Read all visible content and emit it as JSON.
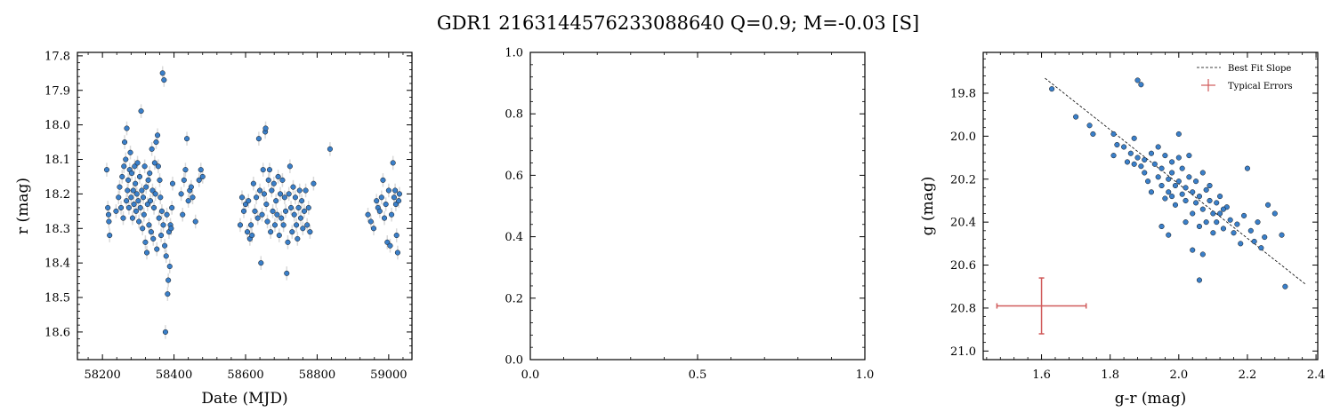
{
  "figure_title": "GDR1 2163144576233088640  Q=0.9; M=-0.03 [S]",
  "colors": {
    "point": "#3a7fc9",
    "point_edge": "#111111",
    "errbar": "#d9d9d9",
    "typical": "#d05a5a",
    "fit": "#000000"
  },
  "chart_data": [
    {
      "type": "scatter",
      "panel": "light-curve",
      "xlabel": "Date (MJD)",
      "ylabel": "r (mag)",
      "xlim": [
        58130,
        59065
      ],
      "ylim": [
        18.68,
        17.79
      ],
      "y_inverted": true,
      "xticks": [
        58200,
        58400,
        58600,
        58800,
        59000
      ],
      "xtick_labels": [
        "58200",
        "58400",
        "58600",
        "58800",
        "59000"
      ],
      "yticks": [
        17.8,
        17.9,
        18.0,
        18.1,
        18.2,
        18.3,
        18.4,
        18.5,
        18.6
      ],
      "ytick_labels": [
        "17.8",
        "17.9",
        "18.0",
        "18.1",
        "18.2",
        "18.3",
        "18.4",
        "18.5",
        "18.6"
      ],
      "y_error": 0.02,
      "points": [
        [
          58212,
          18.13
        ],
        [
          58215,
          18.24
        ],
        [
          58217,
          18.26
        ],
        [
          58218,
          18.28
        ],
        [
          58220,
          18.32
        ],
        [
          58238,
          18.25
        ],
        [
          58245,
          18.21
        ],
        [
          58248,
          18.18
        ],
        [
          58252,
          18.24
        ],
        [
          58255,
          18.15
        ],
        [
          58258,
          18.27
        ],
        [
          58260,
          18.12
        ],
        [
          58262,
          18.05
        ],
        [
          58265,
          18.1
        ],
        [
          58267,
          18.22
        ],
        [
          58268,
          18.01
        ],
        [
          58270,
          18.19
        ],
        [
          58272,
          18.16
        ],
        [
          58274,
          18.24
        ],
        [
          58276,
          18.13
        ],
        [
          58278,
          18.08
        ],
        [
          58280,
          18.21
        ],
        [
          58282,
          18.14
        ],
        [
          58284,
          18.27
        ],
        [
          58286,
          18.19
        ],
        [
          58288,
          18.23
        ],
        [
          58290,
          18.12
        ],
        [
          58292,
          18.17
        ],
        [
          58294,
          18.25
        ],
        [
          58296,
          18.2
        ],
        [
          58298,
          18.11
        ],
        [
          58300,
          18.22
        ],
        [
          58302,
          18.28
        ],
        [
          58304,
          18.15
        ],
        [
          58306,
          18.24
        ],
        [
          58308,
          17.96
        ],
        [
          58310,
          18.19
        ],
        [
          58312,
          18.3
        ],
        [
          58314,
          18.21
        ],
        [
          58316,
          18.26
        ],
        [
          58318,
          18.12
        ],
        [
          58320,
          18.34
        ],
        [
          58322,
          18.18
        ],
        [
          58324,
          18.37
        ],
        [
          58326,
          18.23
        ],
        [
          58328,
          18.16
        ],
        [
          58330,
          18.29
        ],
        [
          58332,
          18.14
        ],
        [
          58334,
          18.22
        ],
        [
          58336,
          18.31
        ],
        [
          58338,
          18.07
        ],
        [
          58340,
          18.19
        ],
        [
          58342,
          18.33
        ],
        [
          58344,
          18.24
        ],
        [
          58346,
          18.11
        ],
        [
          58348,
          18.2
        ],
        [
          58350,
          18.05
        ],
        [
          58352,
          18.36
        ],
        [
          58354,
          18.03
        ],
        [
          58356,
          18.12
        ],
        [
          58358,
          18.27
        ],
        [
          58360,
          18.16
        ],
        [
          58362,
          18.21
        ],
        [
          58364,
          18.32
        ],
        [
          58366,
          18.25
        ],
        [
          58368,
          17.85
        ],
        [
          58370,
          18.29
        ],
        [
          58372,
          17.87
        ],
        [
          58374,
          18.35
        ],
        [
          58376,
          18.6
        ],
        [
          58378,
          18.38
        ],
        [
          58380,
          18.26
        ],
        [
          58382,
          18.49
        ],
        [
          58384,
          18.45
        ],
        [
          58386,
          18.31
        ],
        [
          58388,
          18.41
        ],
        [
          58390,
          18.29
        ],
        [
          58392,
          18.3
        ],
        [
          58394,
          18.24
        ],
        [
          58396,
          18.17
        ],
        [
          58420,
          18.2
        ],
        [
          58424,
          18.26
        ],
        [
          58428,
          18.16
        ],
        [
          58432,
          18.13
        ],
        [
          58436,
          18.04
        ],
        [
          58440,
          18.22
        ],
        [
          58444,
          18.19
        ],
        [
          58448,
          18.18
        ],
        [
          58452,
          18.21
        ],
        [
          58460,
          18.28
        ],
        [
          58470,
          18.16
        ],
        [
          58475,
          18.13
        ],
        [
          58480,
          18.15
        ],
        [
          58585,
          18.29
        ],
        [
          58590,
          18.21
        ],
        [
          58595,
          18.25
        ],
        [
          58600,
          18.23
        ],
        [
          58605,
          18.31
        ],
        [
          58608,
          18.22
        ],
        [
          58612,
          18.33
        ],
        [
          58615,
          18.29
        ],
        [
          58618,
          18.32
        ],
        [
          58622,
          18.17
        ],
        [
          58626,
          18.25
        ],
        [
          58630,
          18.21
        ],
        [
          58634,
          18.27
        ],
        [
          58637,
          18.04
        ],
        [
          58640,
          18.19
        ],
        [
          58643,
          18.4
        ],
        [
          58646,
          18.26
        ],
        [
          58649,
          18.13
        ],
        [
          58652,
          18.2
        ],
        [
          58655,
          18.02
        ],
        [
          58656,
          18.01
        ],
        [
          58658,
          18.23
        ],
        [
          58661,
          18.28
        ],
        [
          58664,
          18.16
        ],
        [
          58667,
          18.13
        ],
        [
          58670,
          18.31
        ],
        [
          58673,
          18.19
        ],
        [
          58676,
          18.25
        ],
        [
          58679,
          18.17
        ],
        [
          58682,
          18.29
        ],
        [
          58685,
          18.22
        ],
        [
          58688,
          18.26
        ],
        [
          58691,
          18.15
        ],
        [
          58694,
          18.32
        ],
        [
          58697,
          18.2
        ],
        [
          58700,
          18.27
        ],
        [
          58703,
          18.16
        ],
        [
          58706,
          18.29
        ],
        [
          58709,
          18.21
        ],
        [
          58712,
          18.25
        ],
        [
          58715,
          18.43
        ],
        [
          58718,
          18.34
        ],
        [
          58721,
          18.2
        ],
        [
          58724,
          18.12
        ],
        [
          58727,
          18.24
        ],
        [
          58730,
          18.31
        ],
        [
          58733,
          18.18
        ],
        [
          58736,
          18.26
        ],
        [
          58739,
          18.21
        ],
        [
          58742,
          18.29
        ],
        [
          58745,
          18.33
        ],
        [
          58748,
          18.24
        ],
        [
          58751,
          18.19
        ],
        [
          58754,
          18.27
        ],
        [
          58757,
          18.22
        ],
        [
          58760,
          18.3
        ],
        [
          58764,
          18.25
        ],
        [
          58768,
          18.19
        ],
        [
          58772,
          18.29
        ],
        [
          58776,
          18.24
        ],
        [
          58780,
          18.31
        ],
        [
          58790,
          18.17
        ],
        [
          58836,
          18.07
        ],
        [
          58942,
          18.26
        ],
        [
          58950,
          18.28
        ],
        [
          58958,
          18.3
        ],
        [
          58966,
          18.22
        ],
        [
          58970,
          18.24
        ],
        [
          58975,
          18.25
        ],
        [
          58980,
          18.21
        ],
        [
          58984,
          18.16
        ],
        [
          58988,
          18.27
        ],
        [
          58992,
          18.23
        ],
        [
          58996,
          18.34
        ],
        [
          59000,
          18.19
        ],
        [
          59004,
          18.35
        ],
        [
          59008,
          18.26
        ],
        [
          59012,
          18.11
        ],
        [
          59015,
          18.21
        ],
        [
          59018,
          18.19
        ],
        [
          59020,
          18.23
        ],
        [
          59022,
          18.32
        ],
        [
          59025,
          18.37
        ],
        [
          59028,
          18.22
        ],
        [
          59030,
          18.2
        ]
      ]
    },
    {
      "type": "scatter",
      "panel": "empty",
      "xlim": [
        0.0,
        1.0
      ],
      "ylim": [
        0.0,
        1.0
      ],
      "xticks": [
        0.0,
        0.5,
        1.0
      ],
      "xtick_labels": [
        "0.0",
        "0.5",
        "1.0"
      ],
      "yticks": [
        0.0,
        0.2,
        0.4,
        0.6,
        0.8,
        1.0
      ],
      "ytick_labels": [
        "0.0",
        "0.2",
        "0.4",
        "0.6",
        "0.8",
        "1.0"
      ],
      "points": []
    },
    {
      "type": "scatter",
      "panel": "color-magnitude",
      "xlabel": "g-r (mag)",
      "ylabel": "g (mag)",
      "xlim": [
        1.43,
        2.405
      ],
      "ylim": [
        21.04,
        19.61
      ],
      "y_inverted": true,
      "xticks": [
        1.6,
        1.8,
        2.0,
        2.2,
        2.4
      ],
      "xtick_labels": [
        "1.6",
        "1.8",
        "2.0",
        "2.2",
        "2.4"
      ],
      "yticks": [
        19.8,
        20.0,
        20.2,
        20.4,
        20.6,
        20.8,
        21.0
      ],
      "ytick_labels": [
        "19.8",
        "20.0",
        "20.2",
        "20.4",
        "20.6",
        "20.8",
        "21.0"
      ],
      "legend": {
        "position": "top-right",
        "entries": [
          "Best Fit Slope",
          "Typical Errors"
        ]
      },
      "best_fit": {
        "x": [
          1.61,
          2.37
        ],
        "y": [
          19.73,
          20.69
        ]
      },
      "typical_error": {
        "x": 1.6,
        "y": 20.79,
        "xerr": 0.13,
        "yerr": 0.13
      },
      "points": [
        [
          1.63,
          19.78
        ],
        [
          1.7,
          19.91
        ],
        [
          1.74,
          19.95
        ],
        [
          1.75,
          19.99
        ],
        [
          1.81,
          19.99
        ],
        [
          1.82,
          20.04
        ],
        [
          1.81,
          20.09
        ],
        [
          1.84,
          20.05
        ],
        [
          1.85,
          20.12
        ],
        [
          1.86,
          20.08
        ],
        [
          1.87,
          20.01
        ],
        [
          1.87,
          20.13
        ],
        [
          1.88,
          19.74
        ],
        [
          1.89,
          19.76
        ],
        [
          1.88,
          20.1
        ],
        [
          1.89,
          20.14
        ],
        [
          1.9,
          20.11
        ],
        [
          1.9,
          20.17
        ],
        [
          1.91,
          20.21
        ],
        [
          1.92,
          20.08
        ],
        [
          1.92,
          20.26
        ],
        [
          1.93,
          20.13
        ],
        [
          1.94,
          20.19
        ],
        [
          1.94,
          20.05
        ],
        [
          1.95,
          20.23
        ],
        [
          1.95,
          20.15
        ],
        [
          1.96,
          20.09
        ],
        [
          1.96,
          20.29
        ],
        [
          1.97,
          20.2
        ],
        [
          1.97,
          20.26
        ],
        [
          1.98,
          20.12
        ],
        [
          1.98,
          20.17
        ],
        [
          1.99,
          20.23
        ],
        [
          1.99,
          20.32
        ],
        [
          2.0,
          20.1
        ],
        [
          2.0,
          20.21
        ],
        [
          2.01,
          20.27
        ],
        [
          2.01,
          20.15
        ],
        [
          2.02,
          20.24
        ],
        [
          2.02,
          20.3
        ],
        [
          2.03,
          20.09
        ],
        [
          2.03,
          20.19
        ],
        [
          2.04,
          20.26
        ],
        [
          2.04,
          20.36
        ],
        [
          2.05,
          20.21
        ],
        [
          2.05,
          20.31
        ],
        [
          2.06,
          20.28
        ],
        [
          2.06,
          20.42
        ],
        [
          2.07,
          20.17
        ],
        [
          2.07,
          20.34
        ],
        [
          2.08,
          20.25
        ],
        [
          2.08,
          20.4
        ],
        [
          2.09,
          20.3
        ],
        [
          2.09,
          20.23
        ],
        [
          2.1,
          20.36
        ],
        [
          2.1,
          20.45
        ],
        [
          2.11,
          20.31
        ],
        [
          2.11,
          20.4
        ],
        [
          2.12,
          20.28
        ],
        [
          2.12,
          20.36
        ],
        [
          2.13,
          20.43
        ],
        [
          2.14,
          20.33
        ],
        [
          2.15,
          20.39
        ],
        [
          2.16,
          20.45
        ],
        [
          2.17,
          20.41
        ],
        [
          2.18,
          20.5
        ],
        [
          2.19,
          20.37
        ],
        [
          2.2,
          20.15
        ],
        [
          2.21,
          20.44
        ],
        [
          2.22,
          20.49
        ],
        [
          2.23,
          20.4
        ],
        [
          2.24,
          20.52
        ],
        [
          2.25,
          20.47
        ],
        [
          2.26,
          20.32
        ],
        [
          2.28,
          20.36
        ],
        [
          2.3,
          20.46
        ],
        [
          2.31,
          20.7
        ],
        [
          2.06,
          20.67
        ],
        [
          1.97,
          20.46
        ],
        [
          2.04,
          20.53
        ],
        [
          2.07,
          20.55
        ],
        [
          1.95,
          20.42
        ],
        [
          2.02,
          20.4
        ],
        [
          2.13,
          20.34
        ],
        [
          1.98,
          20.28
        ],
        [
          2.0,
          19.99
        ]
      ]
    }
  ]
}
